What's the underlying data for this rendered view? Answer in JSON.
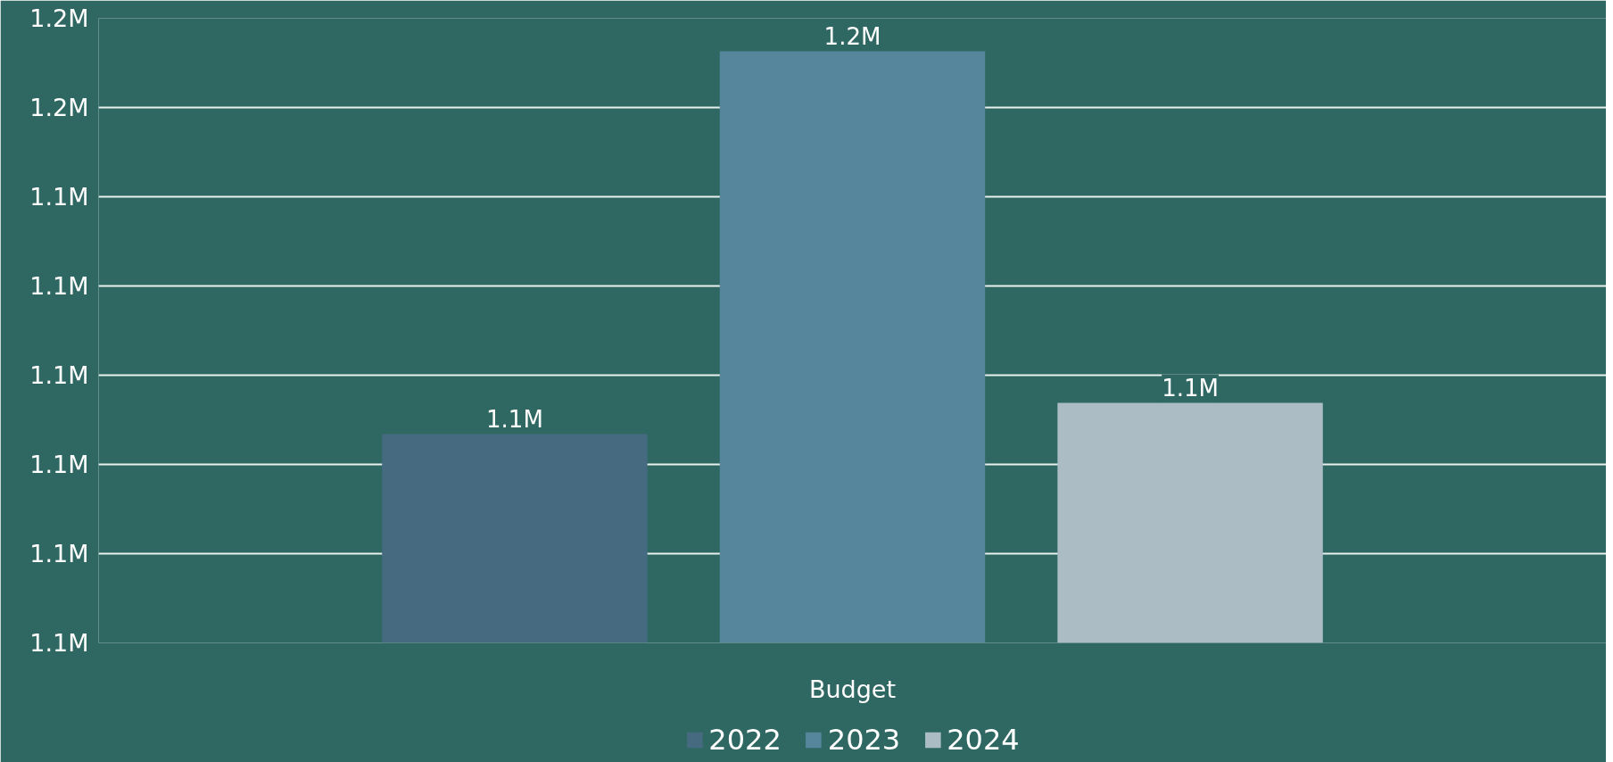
{
  "chart_data": {
    "type": "bar",
    "categories": [
      "Budget"
    ],
    "series": [
      {
        "name": "2022",
        "color": "#466b80",
        "values": [
          1123400
        ],
        "value_labels": [
          "1.1M"
        ]
      },
      {
        "name": "2023",
        "color": "#55869b",
        "values": [
          1166300
        ],
        "value_labels": [
          "1.2M"
        ]
      },
      {
        "name": "2024",
        "color": "#abbcc4",
        "values": [
          1126900
        ],
        "value_labels": [
          "1.1M"
        ]
      }
    ],
    "ylim": [
      1100000,
      1170000
    ],
    "yticks": [
      {
        "value": 1100000,
        "label": "1.1M"
      },
      {
        "value": 1110000,
        "label": "1.1M"
      },
      {
        "value": 1120000,
        "label": "1.1M"
      },
      {
        "value": 1130000,
        "label": "1.1M"
      },
      {
        "value": 1140000,
        "label": "1.1M"
      },
      {
        "value": 1150000,
        "label": "1.1M"
      },
      {
        "value": 1160000,
        "label": "1.2M"
      },
      {
        "value": 1170000,
        "label": "1.2M"
      }
    ],
    "grid": "y",
    "legend": "bottom"
  }
}
